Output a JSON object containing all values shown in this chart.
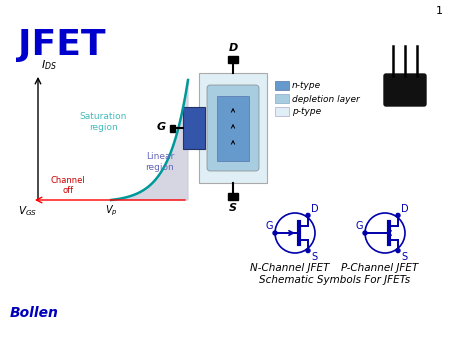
{
  "title": "JFET",
  "title_color": "#0000cc",
  "title_fontsize": 26,
  "background_color": "#ffffff",
  "bollen_text": "Bollen",
  "bollen_color": "#0000bb",
  "page_number": "1",
  "curve_color": "#009999",
  "fill_color": "#ccccdd",
  "saturation_label": "Saturation\nregion",
  "saturation_color": "#44bbbb",
  "linear_label": "Linear\nregion",
  "linear_color": "#6666bb",
  "channel_off_color": "#cc0000",
  "n_channel_label": "N-Channel JFET",
  "p_channel_label": "P-Channel JFET",
  "schematic_label": "Schematic Symbols For JFETs",
  "legend_ntype": "n-type",
  "legend_depletion": "depletion layer",
  "legend_ptype": "p-type",
  "ntype_color": "#6699cc",
  "depletion_color": "#a8cce0",
  "ptype_color": "#e0eef5",
  "gate_color": "#3355aa",
  "symbol_blue": "#0000aa"
}
